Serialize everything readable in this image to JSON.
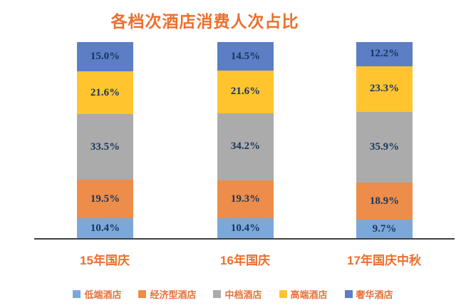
{
  "title": "各档次酒店消费人次占比",
  "colors": {
    "title": "#ED6F2D",
    "axis_labels": "#ED6F2D",
    "legend_text": "#E8703A",
    "data_label": "#17375D",
    "axis_line": "#404040",
    "background": "#FFFFFF"
  },
  "chart_data": {
    "type": "bar",
    "stacked": true,
    "title": "各档次酒店消费人次占比",
    "categories": [
      "15年国庆",
      "16年国庆",
      "17年国庆中秋"
    ],
    "series": [
      {
        "name": "低端酒店",
        "color": "#7CA8D9",
        "values": [
          10.4,
          10.4,
          9.7
        ]
      },
      {
        "name": "经济型酒店",
        "color": "#EE8C49",
        "values": [
          19.5,
          19.3,
          18.9
        ]
      },
      {
        "name": "中档酒店",
        "color": "#ABABAB",
        "values": [
          33.5,
          34.2,
          35.9
        ]
      },
      {
        "name": "高端酒店",
        "color": "#FFC42E",
        "values": [
          21.6,
          21.6,
          23.3
        ]
      },
      {
        "name": "奢华酒店",
        "color": "#5B7EC5",
        "values": [
          15.0,
          14.5,
          12.2
        ]
      }
    ],
    "data_labels": [
      [
        "10.4%",
        "19.5%",
        "33.5%",
        "21.6%",
        "15.0%"
      ],
      [
        "10.4%",
        "19.3%",
        "34.2%",
        "21.6%",
        "14.5%"
      ],
      [
        "9.7%",
        "18.9%",
        "35.9%",
        "23.3%",
        "12.2%"
      ]
    ],
    "unit": "%",
    "ylim": [
      0,
      100
    ],
    "grid": false,
    "legend_position": "bottom",
    "legend": [
      "低端酒店",
      "经济型酒店",
      "中档酒店",
      "高端酒店",
      "奢华酒店"
    ]
  }
}
